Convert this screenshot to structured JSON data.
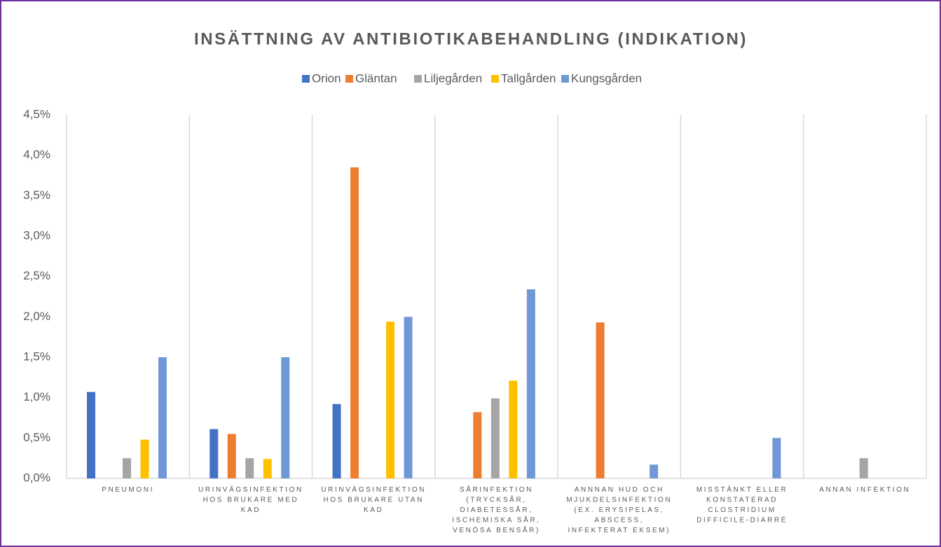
{
  "chart_data": {
    "type": "bar",
    "title": "INSÄTTNING AV ANTIBIOTIKABEHANDLING (INDIKATION)",
    "categories": [
      "PNEUMONI",
      "URINVÄGSINFEKTION HOS BRUKARE MED KAD",
      "URINVÄGSINFEKTION HOS BRUKARE UTAN KAD",
      "SÅRINFEKTION (TRYCKSÅR, DIABETESSÅR, ISCHEMISKA SÅR, VENÖSA BENSÅR)",
      "ANNNAN HUD OCH MJUKDELSINFEKTION (EX. ERYSIPELAS, ABSCESS, INFEKTERAT EKSEM)",
      "MISSTÄNKT ELLER KONSTATERAD CLOSTRIDIUM DIFFICILE-DIARRÉ",
      "ANNAN INFEKTION"
    ],
    "series": [
      {
        "name": "Orion",
        "color": "#4472c4",
        "values": [
          1.07,
          0.61,
          0.92,
          0,
          0,
          0,
          0
        ]
      },
      {
        "name": "Gläntan",
        "color": "#ed7d31",
        "values": [
          0,
          0.55,
          3.85,
          0.82,
          1.93,
          0,
          0
        ]
      },
      {
        "name": "Liljegården",
        "color": "#a5a5a5",
        "values": [
          0.25,
          0.25,
          0,
          0.99,
          0,
          0,
          0.25
        ]
      },
      {
        "name": "Tallgården",
        "color": "#ffc000",
        "values": [
          0.48,
          0.24,
          1.94,
          1.21,
          0,
          0,
          0
        ]
      },
      {
        "name": "Kungsgården",
        "color": "#7097d6",
        "values": [
          1.5,
          1.5,
          2.0,
          2.34,
          0.17,
          0.5,
          0
        ]
      }
    ],
    "ylim": [
      0,
      4.5
    ],
    "yticks": [
      {
        "value": 0,
        "label": "0,0%"
      },
      {
        "value": 0.5,
        "label": "0,5%"
      },
      {
        "value": 1,
        "label": "1,0%"
      },
      {
        "value": 1.5,
        "label": "1,5%"
      },
      {
        "value": 2,
        "label": "2,0%"
      },
      {
        "value": 2.5,
        "label": "2,5%"
      },
      {
        "value": 3,
        "label": "3,0%"
      },
      {
        "value": 3.5,
        "label": "3,5%"
      },
      {
        "value": 4,
        "label": "4,0%"
      },
      {
        "value": 4.5,
        "label": "4,5%"
      }
    ],
    "legend": "top"
  }
}
